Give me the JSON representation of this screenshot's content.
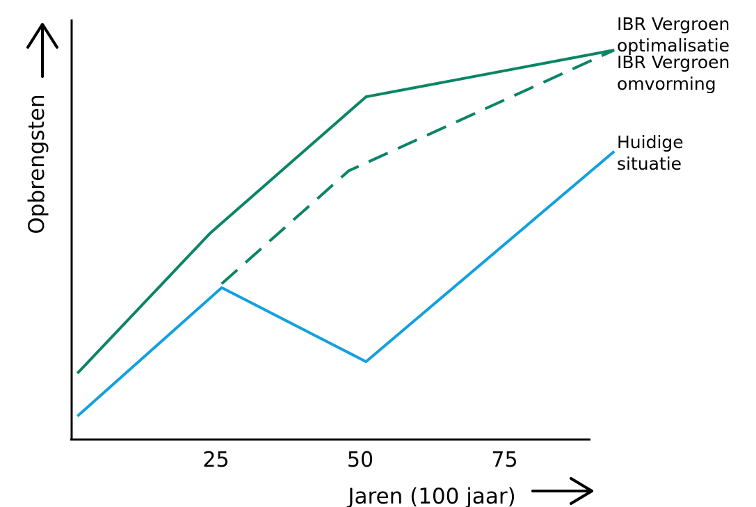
{
  "chart_data": {
    "type": "line",
    "title": "",
    "xlabel": "Jaren (100 jaar)",
    "ylabel": "Opbrengsten",
    "x_ticks": [
      "25",
      "50",
      "75"
    ],
    "xlim": [
      0,
      91
    ],
    "ylim": [
      0,
      100
    ],
    "grid": false,
    "legend": "right, labels at line ends",
    "series": [
      {
        "name": "IBR Vergroen optimalisatie",
        "color": "#0a8566",
        "style": "solid",
        "x": [
          1,
          24,
          51,
          94
        ],
        "y": [
          17,
          53,
          88,
          100
        ]
      },
      {
        "name": "IBR Vergroen omvorming",
        "color": "#0a8566",
        "style": "dashed",
        "x": [
          26,
          48,
          94
        ],
        "y": [
          40,
          69,
          100
        ]
      },
      {
        "name": "Huidige situatie",
        "color": "#12a0df",
        "style": "solid",
        "x": [
          1,
          26,
          51,
          94
        ],
        "y": [
          6,
          39,
          20,
          74
        ]
      }
    ]
  }
}
